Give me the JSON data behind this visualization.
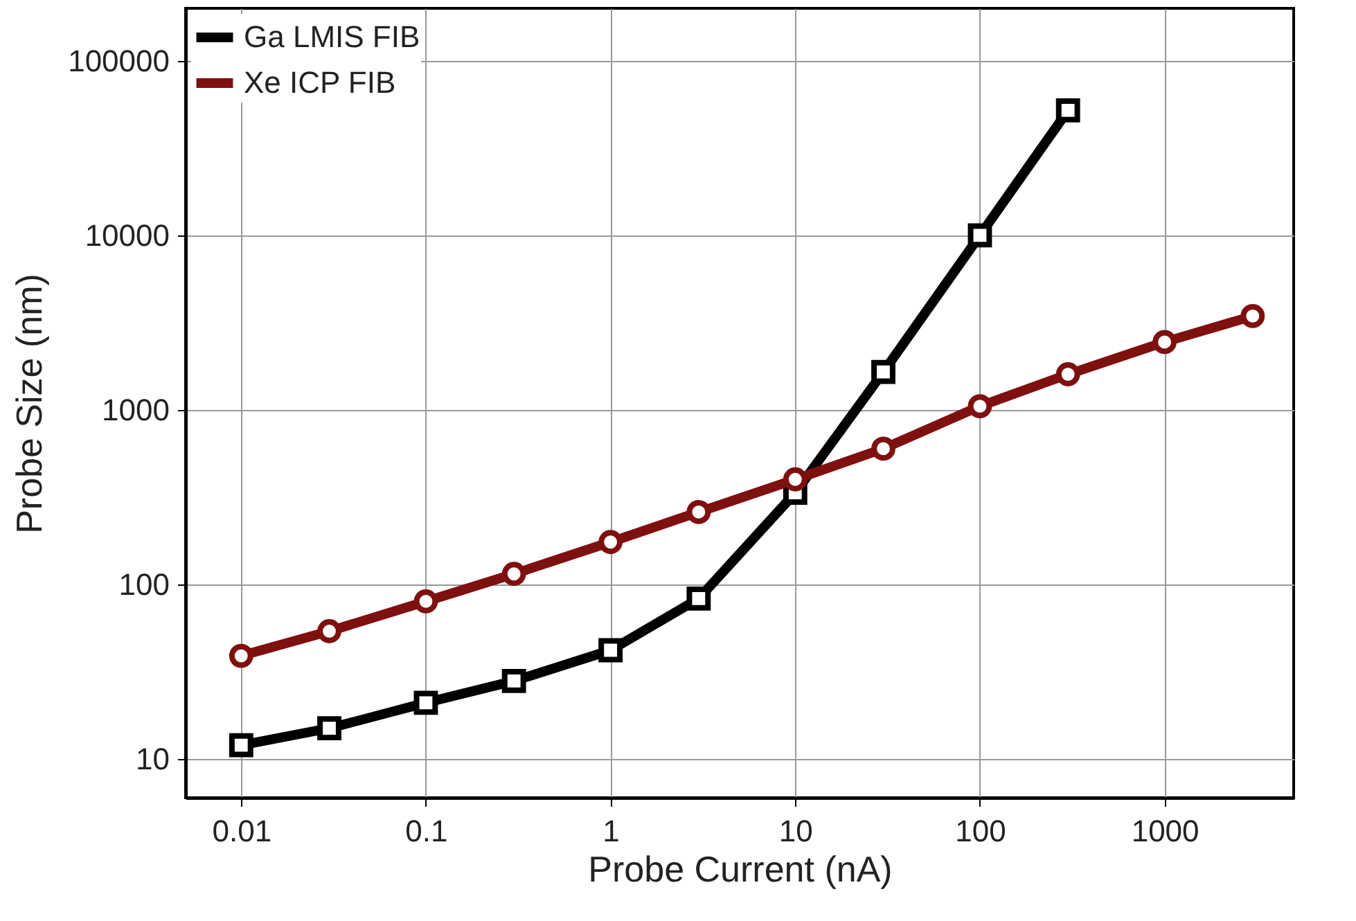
{
  "chart_data": {
    "type": "line",
    "xlabel": "Probe Current (nA)",
    "ylabel": "Probe Size (nm)",
    "log": "xy",
    "grid": true,
    "legend": "top left",
    "line_style": "solid",
    "xlim": [
      0.005,
      5000
    ],
    "xticks": [
      0.01,
      0.1,
      1,
      10,
      100,
      1000
    ],
    "ylim": [
      6,
      200000
    ],
    "yticks": [
      10,
      100,
      1000,
      10000,
      100000
    ],
    "series": [
      {
        "name": "Ga LMIS FIB",
        "color": "#000000",
        "marker": "square",
        "x": [
          0.01,
          0.03,
          0.1,
          0.3,
          1,
          3,
          10,
          30,
          100,
          300
        ],
        "values": [
          12,
          15,
          21,
          28,
          42,
          83,
          335,
          1650,
          10000,
          52000
        ]
      },
      {
        "name": "Xe ICP FIB",
        "color": "#7f1010",
        "marker": "circle",
        "x": [
          0.01,
          0.03,
          0.1,
          0.3,
          1,
          3,
          10,
          30,
          100,
          300,
          1000,
          3000
        ],
        "values": [
          39,
          54,
          80,
          115,
          175,
          260,
          400,
          600,
          1050,
          1600,
          2450,
          3450
        ]
      }
    ]
  }
}
